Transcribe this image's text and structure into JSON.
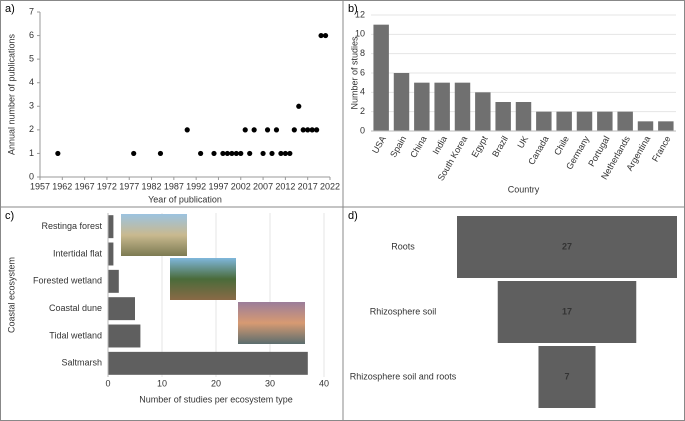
{
  "chart_data": [
    {
      "type": "scatter",
      "panel_label": "a)",
      "xlabel": "Year of publication",
      "ylabel": "Annual number of publications",
      "x": [
        1961,
        1978,
        1984,
        1990,
        1993,
        1996,
        1998,
        1999,
        2000,
        2001,
        2002,
        2003,
        2004,
        2005,
        2007,
        2008,
        2009,
        2010,
        2011,
        2012,
        2013,
        2014,
        2015,
        2016,
        2017,
        2018,
        2019,
        2020,
        2021
      ],
      "series": [
        {
          "name": "publications",
          "color": "#000000",
          "values": [
            1,
            1,
            1,
            2,
            1,
            1,
            1,
            1,
            1,
            1,
            1,
            2,
            1,
            2,
            1,
            2,
            1,
            2,
            1,
            1,
            1,
            2,
            3,
            2,
            2,
            2,
            2,
            6,
            6
          ]
        }
      ],
      "xlim": [
        1957,
        2022
      ],
      "xticks": [
        1957,
        1962,
        1967,
        1972,
        1977,
        1982,
        1987,
        1992,
        1997,
        2002,
        2007,
        2012,
        2017,
        2022
      ],
      "ylim": [
        0,
        7
      ],
      "yticks": [
        0,
        1,
        2,
        3,
        4,
        5,
        6,
        7
      ],
      "grid": false
    },
    {
      "type": "bar",
      "panel_label": "b)",
      "xlabel": "Country",
      "ylabel": "Number of studies",
      "color": "#707070",
      "categories": [
        "USA",
        "Spain",
        "China",
        "India",
        "South Korea",
        "Egypt",
        "Brazil",
        "UK",
        "Canada",
        "Chile",
        "Germany",
        "Portugal",
        "Netherlands",
        "Argentina",
        "France"
      ],
      "values": [
        11,
        6,
        5,
        5,
        5,
        4,
        3,
        3,
        2,
        2,
        2,
        2,
        2,
        1,
        1
      ],
      "ylim": [
        0,
        12
      ],
      "yticks": [
        0,
        2,
        4,
        6,
        8,
        10,
        12
      ],
      "grid": true
    },
    {
      "type": "hbar",
      "panel_label": "c)",
      "xlabel": "Number of studies per ecosystem type",
      "ylabel": "Coastal ecosystem",
      "color": "#5f5f5f",
      "categories": [
        "Restinga forest",
        "Intertidal flat",
        "Forested wetland",
        "Coastal dune",
        "Tidal wetland",
        "Saltmarsh"
      ],
      "values": [
        1,
        1,
        2,
        5,
        6,
        37
      ],
      "xlim": [
        0,
        40
      ],
      "xticks": [
        0,
        10,
        20,
        30,
        40
      ],
      "grid": true
    },
    {
      "type": "funnel",
      "panel_label": "d)",
      "color": "#5f5f5f",
      "categories": [
        "Roots",
        "Rhizosphere soil",
        "Rhizosphere soil and roots"
      ],
      "values": [
        27,
        17,
        7
      ]
    }
  ]
}
